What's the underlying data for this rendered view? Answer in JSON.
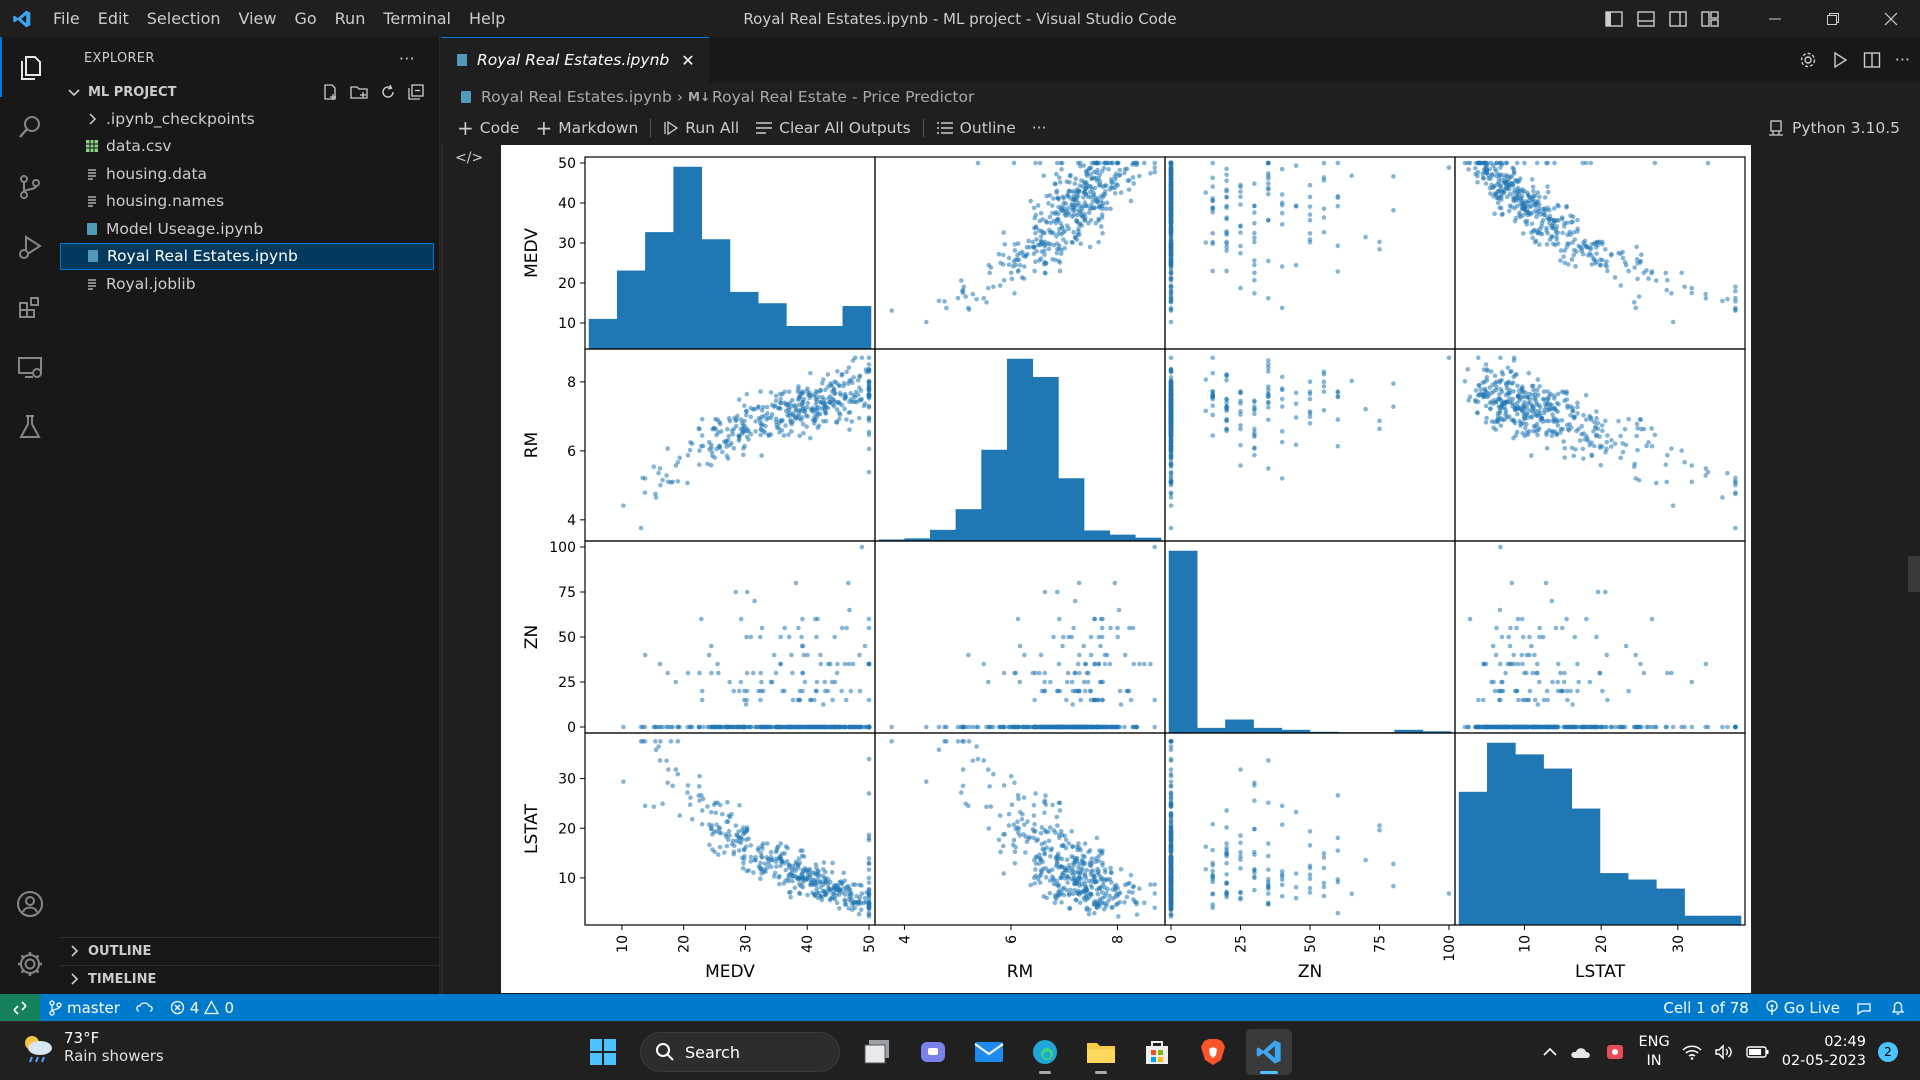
{
  "titlebar": {
    "menu": [
      "File",
      "Edit",
      "Selection",
      "View",
      "Go",
      "Run",
      "Terminal",
      "Help"
    ],
    "window_title": "Royal Real Estates.ipynb - ML project - Visual Studio Code"
  },
  "sidebar": {
    "title": "EXPLORER",
    "project": "ML PROJECT",
    "items": [
      {
        "name": ".ipynb_checkpoints",
        "icon": "chevron-right-icon"
      },
      {
        "name": "data.csv",
        "icon": "csv-icon"
      },
      {
        "name": "housing.data",
        "icon": "text-file-icon"
      },
      {
        "name": "housing.names",
        "icon": "text-file-icon"
      },
      {
        "name": "Model Useage.ipynb",
        "icon": "notebook-icon"
      },
      {
        "name": "Royal Real Estates.ipynb",
        "icon": "notebook-icon"
      },
      {
        "name": "Royal.joblib",
        "icon": "text-file-icon"
      }
    ],
    "outline": "OUTLINE",
    "timeline": "TIMELINE"
  },
  "editor": {
    "tab_label": "Royal Real Estates.ipynb",
    "breadcrumb_file": "Royal Real Estates.ipynb",
    "breadcrumb_cell": "Royal Real Estate - Price Predictor",
    "breadcrumb_cell_prefix": "M↓",
    "toolbar": {
      "code": "Code",
      "markdown": "Markdown",
      "run_all": "Run All",
      "clear": "Clear All Outputs",
      "outline": "Outline",
      "more": "···"
    },
    "kernel": "Python 3.10.5"
  },
  "chart_data": {
    "type": "scatter",
    "title": "",
    "variables": [
      "MEDV",
      "RM",
      "ZN",
      "LSTAT"
    ],
    "ranges": {
      "MEDV": [
        5,
        50
      ],
      "RM": [
        3.56,
        8.78
      ],
      "ZN": [
        0,
        100
      ],
      "LSTAT": [
        1.73,
        37.97
      ]
    },
    "ticks": {
      "MEDV": [
        10,
        20,
        30,
        40,
        50
      ],
      "RM": [
        4,
        6,
        8
      ],
      "ZN": [
        0,
        25,
        50,
        75,
        100
      ],
      "LSTAT": [
        10,
        20,
        30
      ]
    },
    "histograms": {
      "MEDV": [
        21,
        55,
        82,
        128,
        77,
        40,
        32,
        16,
        16,
        30
      ],
      "RM": [
        2,
        4,
        18,
        52,
        150,
        300,
        270,
        103,
        17,
        10,
        5
      ],
      "ZN": [
        372,
        10,
        27,
        10,
        6,
        2,
        1,
        1,
        6,
        3
      ],
      "LSTAT": [
        103,
        141,
        132,
        121,
        90,
        40,
        35,
        28,
        7,
        7
      ]
    },
    "point_color": "#1f77b4",
    "bar_color": "#1f77b4",
    "grid": false
  },
  "statusbar": {
    "branch": "master",
    "errors": "4",
    "warnings": "0",
    "cell": "Cell 1 of 78",
    "golive": "Go Live"
  },
  "taskbar": {
    "temp": "73°F",
    "condition": "Rain showers",
    "search": "Search",
    "lang1": "ENG",
    "lang2": "IN",
    "time": "02:49",
    "date": "02-05-2023",
    "notifications": "2"
  }
}
